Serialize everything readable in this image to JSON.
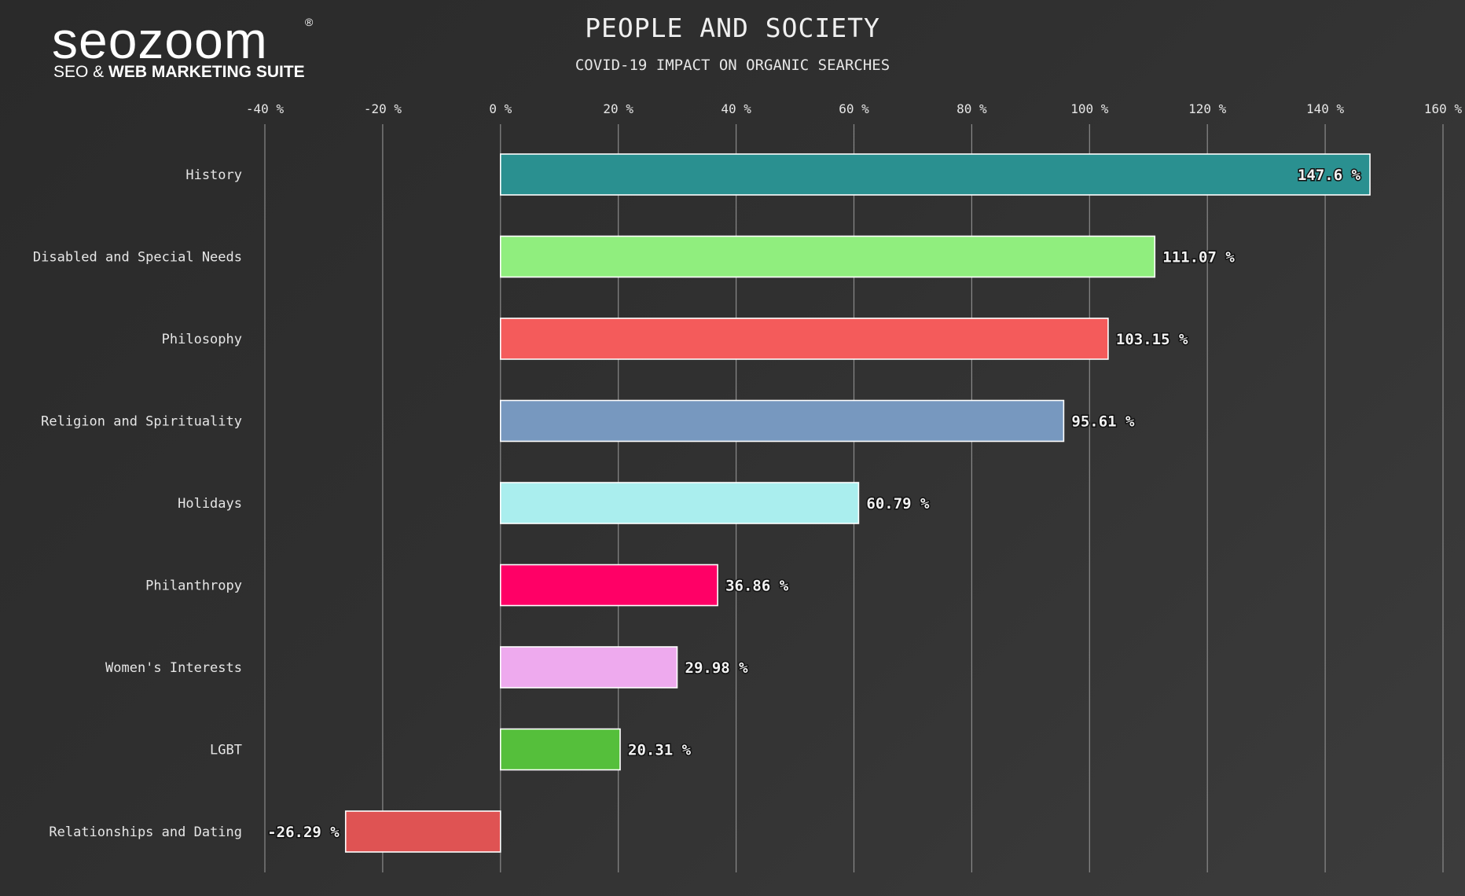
{
  "logo": {
    "word": "seozoom",
    "reg": "®",
    "tag_light": "SEO & ",
    "tag_bold": "WEB MARKETING SUITE"
  },
  "chart_data": {
    "type": "bar",
    "orientation": "horizontal",
    "title": "PEOPLE AND SOCIETY",
    "subtitle": "COVID-19 IMPACT ON ORGANIC SEARCHES",
    "xlabel": "",
    "ylabel": "",
    "xlim": [
      -40,
      160
    ],
    "xticks": [
      -40,
      -20,
      0,
      20,
      40,
      60,
      80,
      100,
      120,
      140,
      160
    ],
    "tick_suffix": " %",
    "grid": "vertical",
    "categories": [
      "History",
      "Disabled and Special Needs",
      "Philosophy",
      "Religion and Spirituality",
      "Holidays",
      "Philanthropy",
      "Women's Interests",
      "LGBT",
      "Relationships and Dating"
    ],
    "values": [
      147.6,
      111.07,
      103.15,
      95.61,
      60.79,
      36.86,
      29.98,
      20.31,
      -26.29
    ],
    "value_labels": [
      "147.6 %",
      "111.07 %",
      "103.15 %",
      "95.61 %",
      "60.79 %",
      "36.86 %",
      "29.98 %",
      "20.31 %",
      "-26.29 %"
    ],
    "colors": [
      "#2a9090",
      "#90ee7e",
      "#f45b5b",
      "#7798bf",
      "#aaeeee",
      "#ff0066",
      "#eeaaee",
      "#55bf3b",
      "#df5353"
    ]
  }
}
